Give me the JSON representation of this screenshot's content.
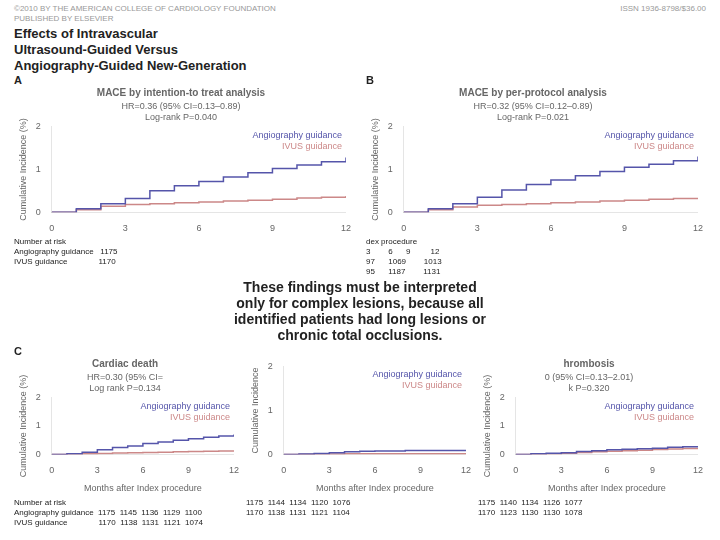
{
  "title": [
    "Effects of Intravascular",
    "Ultrasound-Guided Versus",
    "Angiography-Guided New-Generation"
  ],
  "annotations": [
    "©2010 BY THE AMERICAN COLLEGE OF CARDIOLOGY FOUNDATION",
    "PUBLISHED BY ELSEVIER",
    "ISSN 1936-8798/$36.00",
    "A",
    "B",
    "C",
    "These findings must be interpreted\nonly for complex lesions, because all\nidentified patients had long lesions or\nchronic total occlusions."
  ],
  "chart_data": [
    {
      "type": "step",
      "title": "MACE by intention-to treat analysis",
      "subtitle": [
        "HR=0.36 (95% CI=0.13–0.89)",
        "Log-rank P=0.040"
      ],
      "ylabel": "Cumulative Incidence (%)",
      "x": [
        0,
        1,
        2,
        3,
        4,
        5,
        6,
        7,
        8,
        9,
        10,
        11,
        12
      ],
      "series": [
        {
          "name": "Angiography guidance",
          "color": "#5555aa",
          "values": [
            0,
            0.08,
            0.2,
            0.32,
            0.5,
            0.62,
            0.72,
            0.82,
            0.92,
            1.02,
            1.1,
            1.18,
            1.28
          ]
        },
        {
          "name": "IVUS guidance",
          "color": "#cc8888",
          "values": [
            0,
            0.06,
            0.14,
            0.18,
            0.2,
            0.22,
            0.24,
            0.26,
            0.28,
            0.3,
            0.33,
            0.35,
            0.38
          ]
        }
      ],
      "xlim": [
        0,
        12
      ],
      "xticks": [
        0,
        3,
        6,
        9,
        12
      ],
      "ylim": [
        0,
        2
      ],
      "yticks": [
        0,
        1,
        2
      ],
      "grid": false,
      "annotations": [
        "Number at risk",
        "Angiography guidance   1175",
        "IVUS guidance              1170"
      ]
    },
    {
      "type": "step",
      "title": "MACE by per-protocol analysis",
      "subtitle": [
        "HR=0.32 (95% CI=0.12–0.89)",
        "Log-rank P=0.021"
      ],
      "ylabel": "Cumulative Incidence (%)",
      "x": [
        0,
        1,
        2,
        3,
        4,
        5,
        6,
        7,
        8,
        9,
        10,
        11,
        12
      ],
      "series": [
        {
          "name": "Angiography guidance",
          "color": "#5555aa",
          "values": [
            0,
            0.08,
            0.2,
            0.35,
            0.52,
            0.65,
            0.75,
            0.85,
            0.95,
            1.05,
            1.12,
            1.2,
            1.3
          ]
        },
        {
          "name": "IVUS guidance",
          "color": "#cc8888",
          "values": [
            0,
            0.06,
            0.12,
            0.16,
            0.18,
            0.2,
            0.22,
            0.24,
            0.26,
            0.28,
            0.3,
            0.32,
            0.34
          ]
        }
      ],
      "xlim": [
        0,
        12
      ],
      "xticks": [
        0,
        3,
        6,
        9,
        12
      ],
      "ylim": [
        0,
        2
      ],
      "yticks": [
        0,
        1,
        2
      ],
      "grid": false,
      "annotations": [
        "dex procedure",
        "3        6      9         12",
        "97      1069        1013",
        "95      1187        1131"
      ]
    },
    {
      "type": "step",
      "title": "Cardiac death",
      "subtitle": [
        "HR=0.30 (95% CI=",
        "Log rank P=0.134"
      ],
      "xlabel": "Months after Index procedure",
      "ylabel": "Cumulative Incidence (%)",
      "x": [
        0,
        1,
        2,
        3,
        4,
        5,
        6,
        7,
        8,
        9,
        10,
        11,
        12
      ],
      "series": [
        {
          "name": "Angiography guidance",
          "color": "#5555aa",
          "values": [
            0,
            0.02,
            0.08,
            0.16,
            0.24,
            0.3,
            0.38,
            0.44,
            0.5,
            0.55,
            0.6,
            0.65,
            0.7
          ]
        },
        {
          "name": "IVUS guidance",
          "color": "#cc8888",
          "values": [
            0,
            0.01,
            0.02,
            0.03,
            0.05,
            0.06,
            0.07,
            0.08,
            0.09,
            0.1,
            0.11,
            0.12,
            0.13
          ]
        }
      ],
      "xlim": [
        0,
        12
      ],
      "xticks": [
        0,
        3,
        6,
        9,
        12
      ],
      "ylim": [
        0,
        2
      ],
      "yticks": [
        0,
        1,
        2
      ],
      "grid": false,
      "annotations": [
        "Number at risk",
        "Angiography guidance  1175  1145  1136  1129  1100",
        "IVUS guidance              1170  1138  1131  1121  1074"
      ]
    },
    {
      "type": "step",
      "xlabel": "Months after Index procedure",
      "ylabel": "Cumulative Incidence",
      "x": [
        0,
        1,
        2,
        3,
        4,
        5,
        6,
        7,
        8,
        9,
        10,
        11,
        12
      ],
      "series": [
        {
          "name": "Angiography guidance",
          "color": "#5555aa",
          "values": [
            0,
            0.01,
            0.02,
            0.04,
            0.06,
            0.07,
            0.08,
            0.08,
            0.09,
            0.09,
            0.09,
            0.09,
            0.09
          ]
        },
        {
          "name": "IVUS guidance",
          "color": "#cc8888",
          "values": [
            0,
            0.005,
            0.008,
            0.01,
            0.012,
            0.012,
            0.012,
            0.012,
            0.012,
            0.012,
            0.012,
            0.012,
            0.012
          ]
        }
      ],
      "xlim": [
        0,
        12
      ],
      "xticks": [
        0,
        3,
        6,
        9,
        12
      ],
      "ylim": [
        0,
        2
      ],
      "yticks": [
        0,
        1,
        2
      ],
      "grid": false,
      "annotations": [
        "1175  1144  1134  1120  1076",
        "1170  1138  1131  1121  1104"
      ]
    },
    {
      "type": "step",
      "title": "hrombosis",
      "subtitle": [
        "0 (95% CI=0.13–2.01)",
        "k P=0.320"
      ],
      "xlabel": "Months after Index procedure",
      "ylabel": "Cumulative Incidence (%)",
      "x": [
        0,
        1,
        2,
        3,
        4,
        5,
        6,
        7,
        8,
        9,
        10,
        11,
        12
      ],
      "series": [
        {
          "name": "Angiography guidance",
          "color": "#5555aa",
          "values": [
            0,
            0.02,
            0.04,
            0.06,
            0.1,
            0.13,
            0.16,
            0.18,
            0.2,
            0.22,
            0.25,
            0.27,
            0.29
          ]
        },
        {
          "name": "IVUS guidance",
          "color": "#cc8888",
          "values": [
            0,
            0.01,
            0.02,
            0.04,
            0.07,
            0.09,
            0.11,
            0.13,
            0.15,
            0.17,
            0.19,
            0.21,
            0.22
          ]
        }
      ],
      "xlim": [
        0,
        12
      ],
      "xticks": [
        0,
        3,
        6,
        9,
        12
      ],
      "ylim": [
        0,
        2
      ],
      "yticks": [
        0,
        1,
        2
      ],
      "grid": false,
      "annotations": [
        "1175  1140  1134  1126  1077",
        "1170  1123  1130  1130  1078"
      ]
    }
  ]
}
